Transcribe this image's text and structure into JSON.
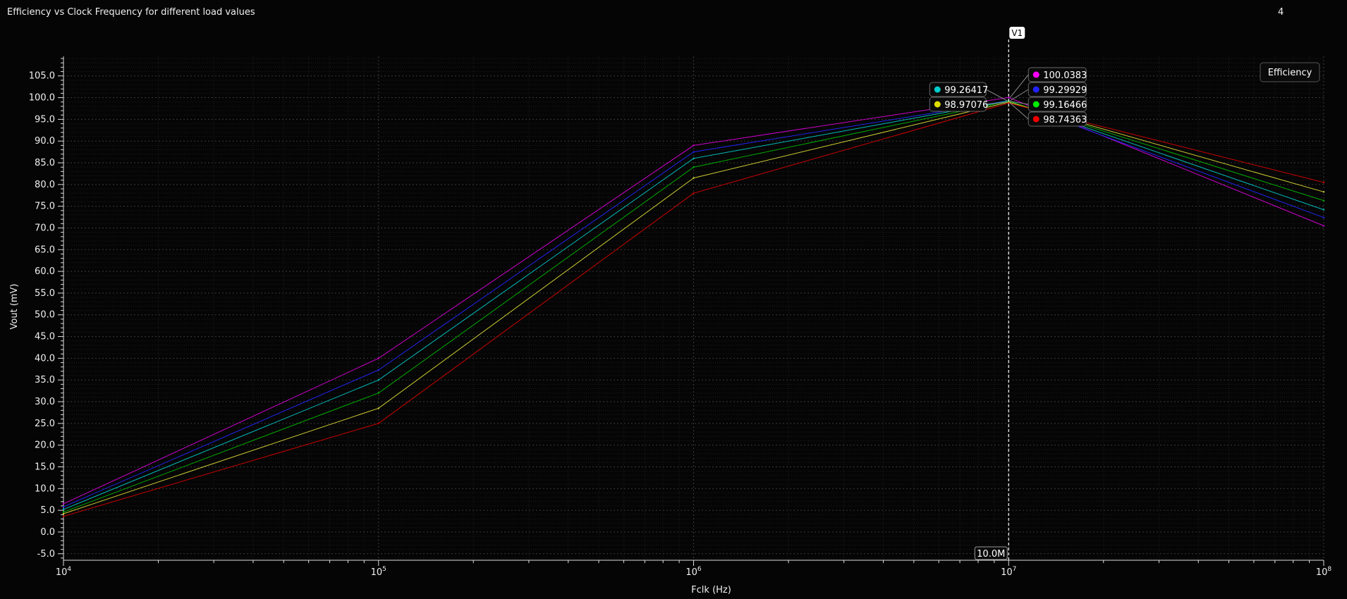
{
  "header": {
    "title": "Efficiency vs Clock Frequency for different load values",
    "window_number": "4"
  },
  "chart_data": {
    "type": "line",
    "title": "Efficiency vs Clock Frequency for different load values",
    "xlabel": "Fclk (Hz)",
    "ylabel": "Vout (mV)",
    "x_scale": "log",
    "xlim": [
      10000,
      100000000
    ],
    "ylim": [
      -6.5,
      109.5
    ],
    "grid": true,
    "legend": {
      "entries": [
        "Efficiency"
      ],
      "placement": "top-right"
    },
    "x_ticks": [
      {
        "base": "10",
        "exp": "4",
        "value": 10000
      },
      {
        "base": "10",
        "exp": "5",
        "value": 100000
      },
      {
        "base": "10",
        "exp": "6",
        "value": 1000000
      },
      {
        "base": "10",
        "exp": "7",
        "value": 10000000
      },
      {
        "base": "10",
        "exp": "8",
        "value": 100000000
      }
    ],
    "y_ticks": [
      "-5.0",
      "0.0",
      "5.0",
      "10.0",
      "15.0",
      "20.0",
      "25.0",
      "30.0",
      "35.0",
      "40.0",
      "45.0",
      "50.0",
      "55.0",
      "60.0",
      "65.0",
      "70.0",
      "75.0",
      "80.0",
      "85.0",
      "90.0",
      "95.0",
      "100.0",
      "105.0"
    ],
    "x": [
      10000,
      100000,
      1000000,
      10000000,
      100000000
    ],
    "series": [
      {
        "color": "#cc00cc",
        "values": [
          6.5,
          40.0,
          89.0,
          100.0383,
          70.5
        ]
      },
      {
        "color": "#2222ee",
        "values": [
          5.8,
          37.3,
          87.5,
          99.29929,
          72.4
        ]
      },
      {
        "color": "#00bbbb",
        "values": [
          5.2,
          35.0,
          86.0,
          99.26417,
          74.2
        ]
      },
      {
        "color": "#00aa00",
        "values": [
          4.6,
          32.0,
          84.0,
          99.16466,
          76.3
        ]
      },
      {
        "color": "#cccc33",
        "values": [
          4.2,
          28.5,
          81.5,
          98.97076,
          78.3
        ]
      },
      {
        "color": "#cc0000",
        "values": [
          3.6,
          25.0,
          78.0,
          98.74363,
          80.5
        ]
      }
    ],
    "cursor": {
      "name": "V1",
      "x": 10000000,
      "x_readout": "10.0M",
      "left_labels": [
        {
          "color": "#00cccc",
          "text": "99.26417",
          "value": 99.26417
        },
        {
          "color": "#dddd00",
          "text": "98.97076",
          "value": 98.97076
        }
      ],
      "right_labels": [
        {
          "color": "#ff00ff",
          "text": "100.0383",
          "value": 100.0383
        },
        {
          "color": "#2222ff",
          "text": "99.29929",
          "value": 99.29929
        },
        {
          "color": "#00ee00",
          "text": "99.16466",
          "value": 99.16466
        },
        {
          "color": "#ee0000",
          "text": "98.74363",
          "value": 98.74363
        }
      ]
    }
  }
}
